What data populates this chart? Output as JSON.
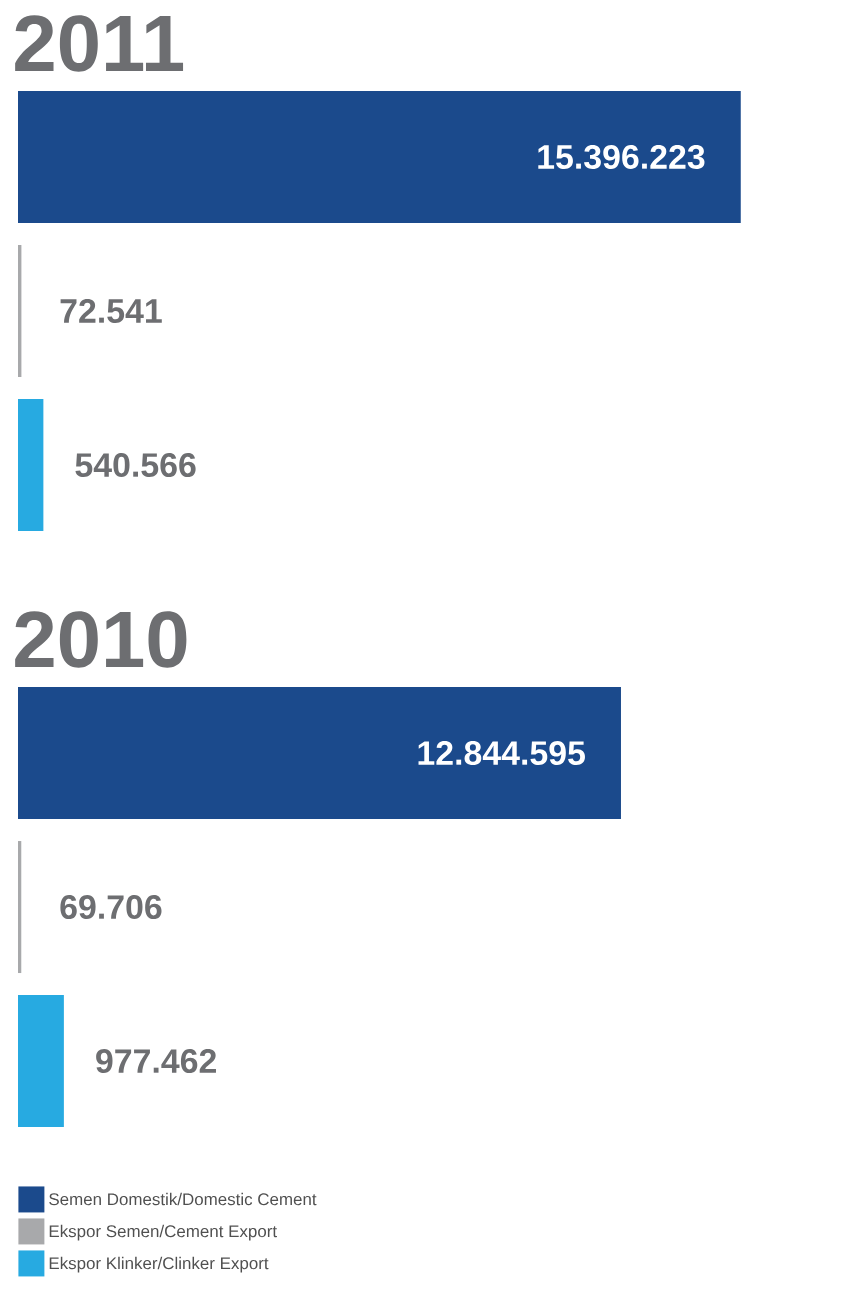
{
  "chart_data": [
    {
      "type": "bar",
      "orientation": "horizontal",
      "title": "2011",
      "categories": [
        null
      ],
      "series": [
        {
          "color": "#1b4a8c",
          "values": [
            15396223
          ],
          "value_labels": [
            "15.396.223"
          ]
        },
        {
          "color": "#a8a9ab",
          "values": [
            72541
          ],
          "value_labels": [
            "72.541"
          ]
        },
        {
          "color": "#27aae1",
          "values": [
            540566
          ],
          "value_labels": [
            "540.566"
          ]
        }
      ]
    },
    {
      "type": "bar",
      "orientation": "horizontal",
      "title": "2010",
      "categories": [
        null
      ],
      "legend": "bottom",
      "series": [
        {
          "name": "Semen Domestik/Domestic Cement",
          "color": "#1b4a8c",
          "values": [
            12844595
          ],
          "value_labels": [
            "12.844.595"
          ]
        },
        {
          "name": "Ekspor Semen/Cement Export",
          "color": "#a8a9ab",
          "values": [
            69706
          ],
          "value_labels": [
            "69.706"
          ]
        },
        {
          "name": "Ekspor Klinker/Clinker Export",
          "color": "#27aae1",
          "values": [
            977462
          ],
          "value_labels": [
            "977.462"
          ]
        }
      ]
    }
  ]
}
